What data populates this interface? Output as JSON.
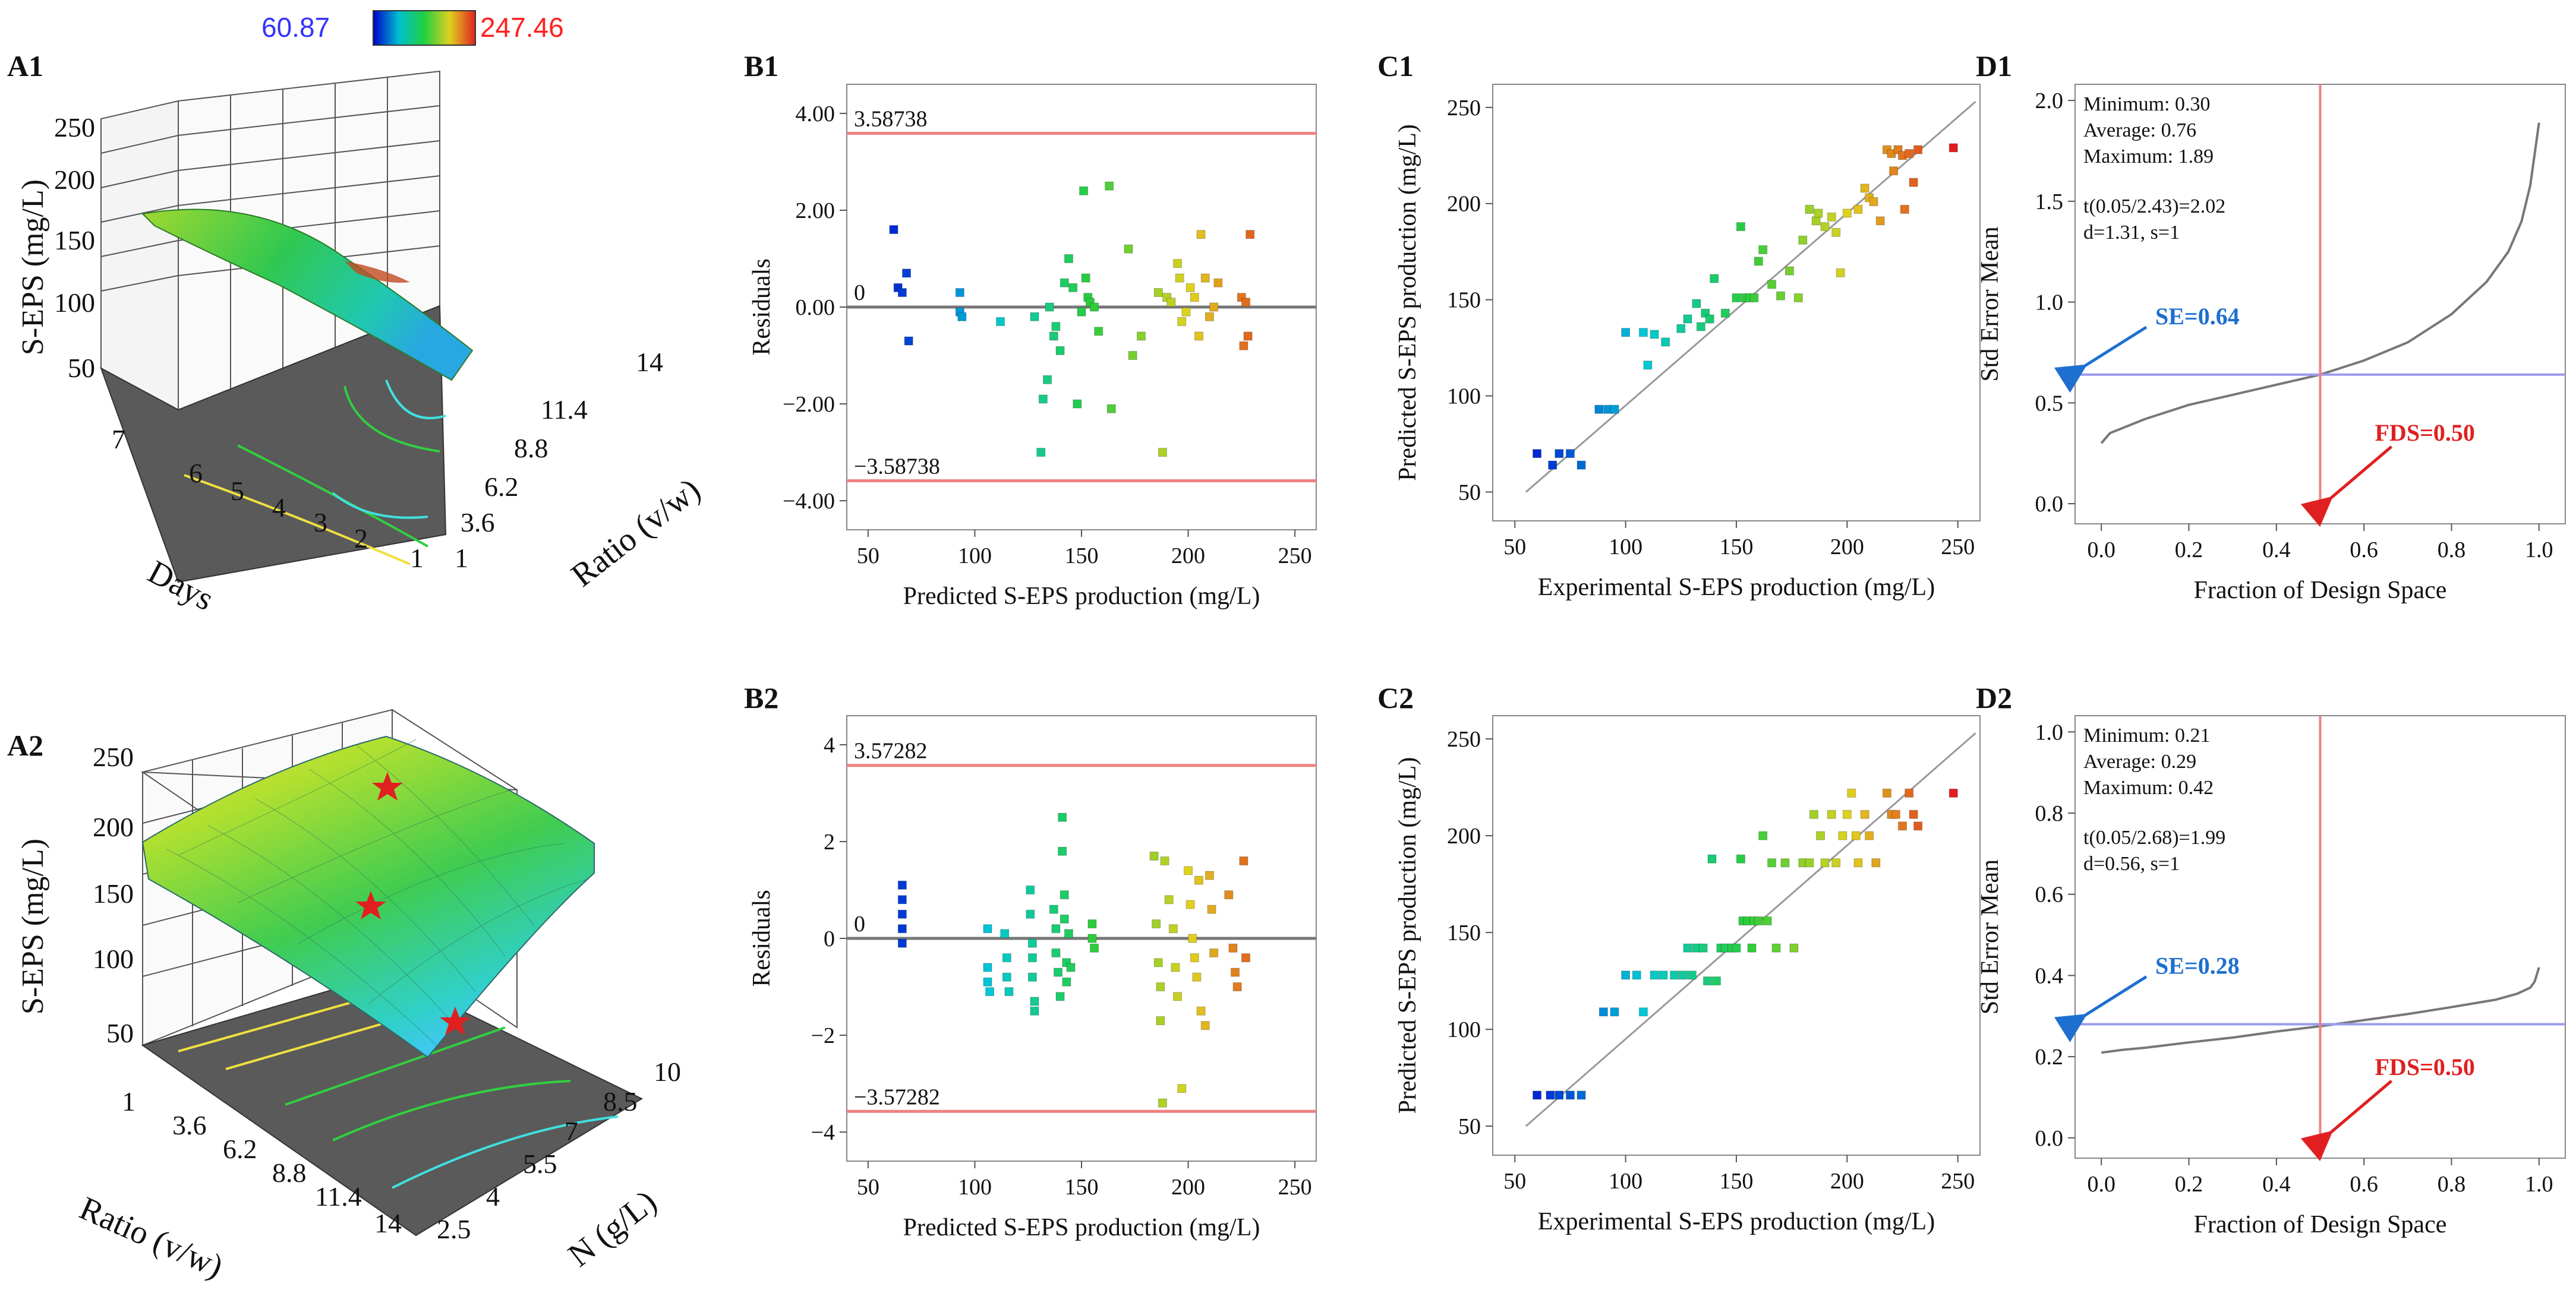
{
  "colorbar": {
    "min_label": "60.87",
    "max_label": "247.46",
    "min_color": "#3333ff",
    "max_color": "#ff2020"
  },
  "panels": {
    "A1": {
      "label": "A1",
      "z_label": "S-EPS (mg/L)",
      "z_ticks": [
        "250",
        "200",
        "150",
        "100",
        "50"
      ],
      "left_axis_label": "Days",
      "left_ticks": [
        "7",
        "6",
        "5",
        "4",
        "3",
        "2",
        "1"
      ],
      "right_axis_label": "Ratio (v/w)",
      "right_ticks": [
        "1",
        "3.6",
        "6.2",
        "8.8",
        "11.4",
        "14"
      ]
    },
    "A2": {
      "label": "A2",
      "z_label": "S-EPS (mg/L)",
      "z_ticks": [
        "250",
        "200",
        "150",
        "100",
        "50"
      ],
      "left_axis_label": "Ratio (v/w)",
      "left_ticks": [
        "1",
        "3.6",
        "6.2",
        "8.8",
        "11.4",
        "14"
      ],
      "right_axis_label": "N (g/L)",
      "right_ticks": [
        "2.5",
        "4",
        "5.5",
        "7",
        "8.5",
        "10"
      ]
    },
    "B1": {
      "label": "B1"
    },
    "B2": {
      "label": "B2"
    },
    "C1": {
      "label": "C1"
    },
    "C2": {
      "label": "C2"
    },
    "D1": {
      "label": "D1"
    },
    "D2": {
      "label": "D2"
    }
  },
  "chart_data": [
    {
      "id": "B1",
      "type": "scatter",
      "xlabel": "Predicted S-EPS production (mg/L)",
      "ylabel": "Residuals",
      "xlim": [
        40,
        260
      ],
      "ylim": [
        -4.6,
        4.6
      ],
      "xticks": [
        50,
        100,
        150,
        200,
        250
      ],
      "yticks": [
        -4,
        -2,
        0,
        2,
        4
      ],
      "ytick_labels": [
        "−4.00",
        "−2.00",
        "0.00",
        "2.00",
        "4.00"
      ],
      "ref_lines": [
        {
          "y": 3.58738,
          "label": "3.58738",
          "color": "#f08080"
        },
        {
          "y": 0,
          "label": "0",
          "color": "#777777"
        },
        {
          "y": -3.58738,
          "label": "−3.58738",
          "color": "#f08080"
        }
      ],
      "points": [
        [
          62,
          1.6
        ],
        [
          64,
          0.4
        ],
        [
          66,
          0.3
        ],
        [
          68,
          0.7
        ],
        [
          69,
          -0.7
        ],
        [
          93,
          0.3
        ],
        [
          93,
          -0.1
        ],
        [
          94,
          -0.2
        ],
        [
          112,
          -0.3
        ],
        [
          128,
          -0.2
        ],
        [
          131,
          -3.0
        ],
        [
          132,
          -1.9
        ],
        [
          134,
          -1.5
        ],
        [
          135,
          0.0
        ],
        [
          137,
          -0.6
        ],
        [
          138,
          -0.4
        ],
        [
          140,
          -0.9
        ],
        [
          142,
          0.5
        ],
        [
          144,
          1.0
        ],
        [
          146,
          0.4
        ],
        [
          148,
          -2.0
        ],
        [
          150,
          -0.1
        ],
        [
          151,
          2.4
        ],
        [
          152,
          0.6
        ],
        [
          153,
          0.2
        ],
        [
          154,
          0.1
        ],
        [
          156,
          0.0
        ],
        [
          158,
          -0.5
        ],
        [
          163,
          2.5
        ],
        [
          164,
          -2.1
        ],
        [
          172,
          1.2
        ],
        [
          174,
          -1.0
        ],
        [
          178,
          -0.6
        ],
        [
          186,
          0.3
        ],
        [
          188,
          -3.0
        ],
        [
          190,
          0.2
        ],
        [
          192,
          0.1
        ],
        [
          195,
          0.9
        ],
        [
          196,
          0.6
        ],
        [
          197,
          -0.3
        ],
        [
          199,
          -0.1
        ],
        [
          201,
          0.4
        ],
        [
          203,
          0.2
        ],
        [
          205,
          -0.6
        ],
        [
          206,
          1.5
        ],
        [
          208,
          0.6
        ],
        [
          210,
          -0.2
        ],
        [
          212,
          0.0
        ],
        [
          214,
          0.5
        ],
        [
          225,
          0.2
        ],
        [
          226,
          -0.8
        ],
        [
          227,
          0.1
        ],
        [
          228,
          -0.6
        ],
        [
          229,
          1.5
        ]
      ]
    },
    {
      "id": "C1",
      "type": "scatter",
      "xlabel": "Experimental S-EPS production (mg/L)",
      "ylabel": "Predicted S-EPS production (mg/L)",
      "xlim": [
        40,
        260
      ],
      "ylim": [
        35,
        262
      ],
      "xticks": [
        50,
        100,
        150,
        200,
        250
      ],
      "yticks": [
        50,
        100,
        150,
        200,
        250
      ],
      "fit_line": [
        [
          55,
          50
        ],
        [
          258,
          253
        ]
      ],
      "points": [
        [
          60,
          70
        ],
        [
          67,
          64
        ],
        [
          70,
          70
        ],
        [
          75,
          70
        ],
        [
          80,
          64
        ],
        [
          88,
          93
        ],
        [
          92,
          93
        ],
        [
          95,
          93
        ],
        [
          100,
          133
        ],
        [
          108,
          133
        ],
        [
          110,
          116
        ],
        [
          113,
          132
        ],
        [
          118,
          128
        ],
        [
          125,
          135
        ],
        [
          128,
          140
        ],
        [
          132,
          148
        ],
        [
          134,
          136
        ],
        [
          136,
          143
        ],
        [
          138,
          140
        ],
        [
          140,
          161
        ],
        [
          145,
          143
        ],
        [
          150,
          151
        ],
        [
          152,
          188
        ],
        [
          154,
          151
        ],
        [
          156,
          151
        ],
        [
          158,
          151
        ],
        [
          160,
          170
        ],
        [
          162,
          176
        ],
        [
          166,
          158
        ],
        [
          170,
          152
        ],
        [
          174,
          165
        ],
        [
          178,
          151
        ],
        [
          180,
          181
        ],
        [
          183,
          197
        ],
        [
          186,
          191
        ],
        [
          187,
          195
        ],
        [
          190,
          188
        ],
        [
          193,
          193
        ],
        [
          195,
          185
        ],
        [
          197,
          164
        ],
        [
          200,
          195
        ],
        [
          205,
          197
        ],
        [
          208,
          208
        ],
        [
          210,
          203
        ],
        [
          212,
          201
        ],
        [
          215,
          191
        ],
        [
          218,
          228
        ],
        [
          220,
          226
        ],
        [
          221,
          217
        ],
        [
          223,
          228
        ],
        [
          225,
          225
        ],
        [
          226,
          197
        ],
        [
          228,
          226
        ],
        [
          230,
          211
        ],
        [
          232,
          228
        ],
        [
          248,
          229
        ]
      ]
    },
    {
      "id": "D1",
      "type": "line",
      "xlabel": "Fraction of Design Space",
      "ylabel": "Std Error Mean",
      "xlim": [
        -0.06,
        1.06
      ],
      "ylim": [
        -0.1,
        2.08
      ],
      "xticks": [
        0,
        0.2,
        0.4,
        0.6,
        0.8,
        1.0
      ],
      "yticks": [
        0,
        0.5,
        1.0,
        1.5,
        2.0
      ],
      "xtick_labels": [
        "0.0",
        "0.2",
        "0.4",
        "0.6",
        "0.8",
        "1.0"
      ],
      "ytick_labels": [
        "0.0",
        "0.5",
        "1.0",
        "1.5",
        "2.0"
      ],
      "stats": [
        "Minimum: 0.30",
        "Average: 0.76",
        "Maximum: 1.89",
        "t(0.05/2.43)=2.02",
        "d=1.31, s=1"
      ],
      "se_value": 0.64,
      "fds_value": 0.5,
      "se_label": "SE=0.64",
      "fds_label": "FDS=0.50",
      "curve": [
        [
          0,
          0.3
        ],
        [
          0.02,
          0.35
        ],
        [
          0.1,
          0.42
        ],
        [
          0.2,
          0.49
        ],
        [
          0.3,
          0.54
        ],
        [
          0.4,
          0.59
        ],
        [
          0.5,
          0.64
        ],
        [
          0.6,
          0.71
        ],
        [
          0.7,
          0.8
        ],
        [
          0.8,
          0.94
        ],
        [
          0.88,
          1.1
        ],
        [
          0.93,
          1.25
        ],
        [
          0.96,
          1.4
        ],
        [
          0.98,
          1.58
        ],
        [
          1.0,
          1.89
        ]
      ]
    },
    {
      "id": "B2",
      "type": "scatter",
      "xlabel": "Predicted S-EPS production (mg/L)",
      "ylabel": "Residuals",
      "xlim": [
        40,
        260
      ],
      "ylim": [
        -4.6,
        4.6
      ],
      "xticks": [
        50,
        100,
        150,
        200,
        250
      ],
      "yticks": [
        -4,
        -2,
        0,
        2,
        4
      ],
      "ytick_labels": [
        "−4",
        "−2",
        "0",
        "2",
        "4"
      ],
      "ref_lines": [
        {
          "y": 3.57282,
          "label": "3.57282",
          "color": "#f08080"
        },
        {
          "y": 0,
          "label": "0",
          "color": "#777777"
        },
        {
          "y": -3.57282,
          "label": "−3.57282",
          "color": "#f08080"
        }
      ],
      "points": [
        [
          66,
          1.1
        ],
        [
          66,
          0.8
        ],
        [
          66,
          0.5
        ],
        [
          66,
          0.2
        ],
        [
          66,
          -0.1
        ],
        [
          106,
          0.2
        ],
        [
          106,
          -0.6
        ],
        [
          106,
          -0.9
        ],
        [
          107,
          -1.1
        ],
        [
          114,
          0.1
        ],
        [
          115,
          -0.4
        ],
        [
          115,
          -0.8
        ],
        [
          116,
          -1.1
        ],
        [
          126,
          1.0
        ],
        [
          126,
          0.5
        ],
        [
          127,
          -0.1
        ],
        [
          127,
          -0.4
        ],
        [
          127,
          -0.8
        ],
        [
          128,
          -1.3
        ],
        [
          128,
          -1.5
        ],
        [
          137,
          0.6
        ],
        [
          138,
          0.2
        ],
        [
          138,
          -0.3
        ],
        [
          139,
          -0.7
        ],
        [
          140,
          -1.2
        ],
        [
          141,
          2.5
        ],
        [
          141,
          1.8
        ],
        [
          142,
          0.9
        ],
        [
          142,
          0.4
        ],
        [
          143,
          -0.5
        ],
        [
          143,
          -0.9
        ],
        [
          144,
          0.1
        ],
        [
          145,
          -0.6
        ],
        [
          155,
          0.3
        ],
        [
          155,
          0.0
        ],
        [
          156,
          -0.2
        ],
        [
          184,
          1.7
        ],
        [
          185,
          0.3
        ],
        [
          186,
          -0.5
        ],
        [
          187,
          -1.0
        ],
        [
          187,
          -1.7
        ],
        [
          188,
          -3.4
        ],
        [
          189,
          1.6
        ],
        [
          191,
          0.8
        ],
        [
          193,
          0.2
        ],
        [
          194,
          -0.6
        ],
        [
          195,
          -1.2
        ],
        [
          197,
          -3.1
        ],
        [
          200,
          1.4
        ],
        [
          201,
          0.7
        ],
        [
          202,
          0.0
        ],
        [
          203,
          -0.4
        ],
        [
          204,
          -0.8
        ],
        [
          205,
          1.2
        ],
        [
          206,
          -1.5
        ],
        [
          208,
          -1.8
        ],
        [
          210,
          1.3
        ],
        [
          211,
          0.6
        ],
        [
          212,
          -0.3
        ],
        [
          219,
          0.9
        ],
        [
          221,
          -0.2
        ],
        [
          222,
          -0.7
        ],
        [
          223,
          -1.0
        ],
        [
          226,
          1.6
        ],
        [
          227,
          -0.4
        ]
      ]
    },
    {
      "id": "C2",
      "type": "scatter",
      "xlabel": "Experimental S-EPS production (mg/L)",
      "ylabel": "Predicted S-EPS production (mg/L)",
      "xlim": [
        40,
        260
      ],
      "ylim": [
        35,
        262
      ],
      "xticks": [
        50,
        100,
        150,
        200,
        250
      ],
      "yticks": [
        50,
        100,
        150,
        200,
        250
      ],
      "fit_line": [
        [
          55,
          50
        ],
        [
          258,
          253
        ]
      ],
      "points": [
        [
          60,
          66
        ],
        [
          66,
          66
        ],
        [
          70,
          66
        ],
        [
          75,
          66
        ],
        [
          80,
          66
        ],
        [
          90,
          109
        ],
        [
          95,
          109
        ],
        [
          100,
          128
        ],
        [
          105,
          128
        ],
        [
          108,
          109
        ],
        [
          113,
          128
        ],
        [
          117,
          128
        ],
        [
          122,
          128
        ],
        [
          126,
          128
        ],
        [
          128,
          142
        ],
        [
          130,
          128
        ],
        [
          132,
          142
        ],
        [
          135,
          142
        ],
        [
          137,
          125
        ],
        [
          139,
          188
        ],
        [
          141,
          125
        ],
        [
          143,
          142
        ],
        [
          145,
          142
        ],
        [
          148,
          142
        ],
        [
          150,
          142
        ],
        [
          152,
          188
        ],
        [
          153,
          156
        ],
        [
          155,
          156
        ],
        [
          157,
          142
        ],
        [
          158,
          156
        ],
        [
          160,
          156
        ],
        [
          162,
          200
        ],
        [
          164,
          156
        ],
        [
          166,
          186
        ],
        [
          168,
          142
        ],
        [
          172,
          186
        ],
        [
          176,
          142
        ],
        [
          180,
          186
        ],
        [
          183,
          186
        ],
        [
          185,
          211
        ],
        [
          188,
          200
        ],
        [
          190,
          186
        ],
        [
          193,
          211
        ],
        [
          195,
          186
        ],
        [
          198,
          200
        ],
        [
          200,
          211
        ],
        [
          202,
          222
        ],
        [
          204,
          200
        ],
        [
          205,
          186
        ],
        [
          208,
          211
        ],
        [
          210,
          200
        ],
        [
          213,
          186
        ],
        [
          218,
          222
        ],
        [
          220,
          211
        ],
        [
          222,
          211
        ],
        [
          225,
          205
        ],
        [
          228,
          222
        ],
        [
          230,
          211
        ],
        [
          232,
          205
        ],
        [
          248,
          222
        ]
      ]
    },
    {
      "id": "D2",
      "type": "line",
      "xlabel": "Fraction of Design Space",
      "ylabel": "Std Error Mean",
      "xlim": [
        -0.06,
        1.06
      ],
      "ylim": [
        -0.05,
        1.04
      ],
      "xticks": [
        0,
        0.2,
        0.4,
        0.6,
        0.8,
        1.0
      ],
      "yticks": [
        0,
        0.2,
        0.4,
        0.6,
        0.8,
        1.0
      ],
      "xtick_labels": [
        "0.0",
        "0.2",
        "0.4",
        "0.6",
        "0.8",
        "1.0"
      ],
      "ytick_labels": [
        "0.0",
        "0.2",
        "0.4",
        "0.6",
        "0.8",
        "1.0"
      ],
      "stats": [
        "Minimum: 0.21",
        "Average: 0.29",
        "Maximum: 0.42",
        "t(0.05/2.68)=1.99",
        "d=0.56, s=1"
      ],
      "se_value": 0.28,
      "fds_value": 0.5,
      "se_label": "SE=0.28",
      "fds_label": "FDS=0.50",
      "curve": [
        [
          0,
          0.21
        ],
        [
          0.05,
          0.217
        ],
        [
          0.1,
          0.222
        ],
        [
          0.2,
          0.235
        ],
        [
          0.3,
          0.247
        ],
        [
          0.4,
          0.262
        ],
        [
          0.5,
          0.275
        ],
        [
          0.6,
          0.29
        ],
        [
          0.7,
          0.305
        ],
        [
          0.8,
          0.322
        ],
        [
          0.9,
          0.34
        ],
        [
          0.95,
          0.355
        ],
        [
          0.98,
          0.37
        ],
        [
          0.99,
          0.385
        ],
        [
          1.0,
          0.42
        ]
      ]
    }
  ]
}
